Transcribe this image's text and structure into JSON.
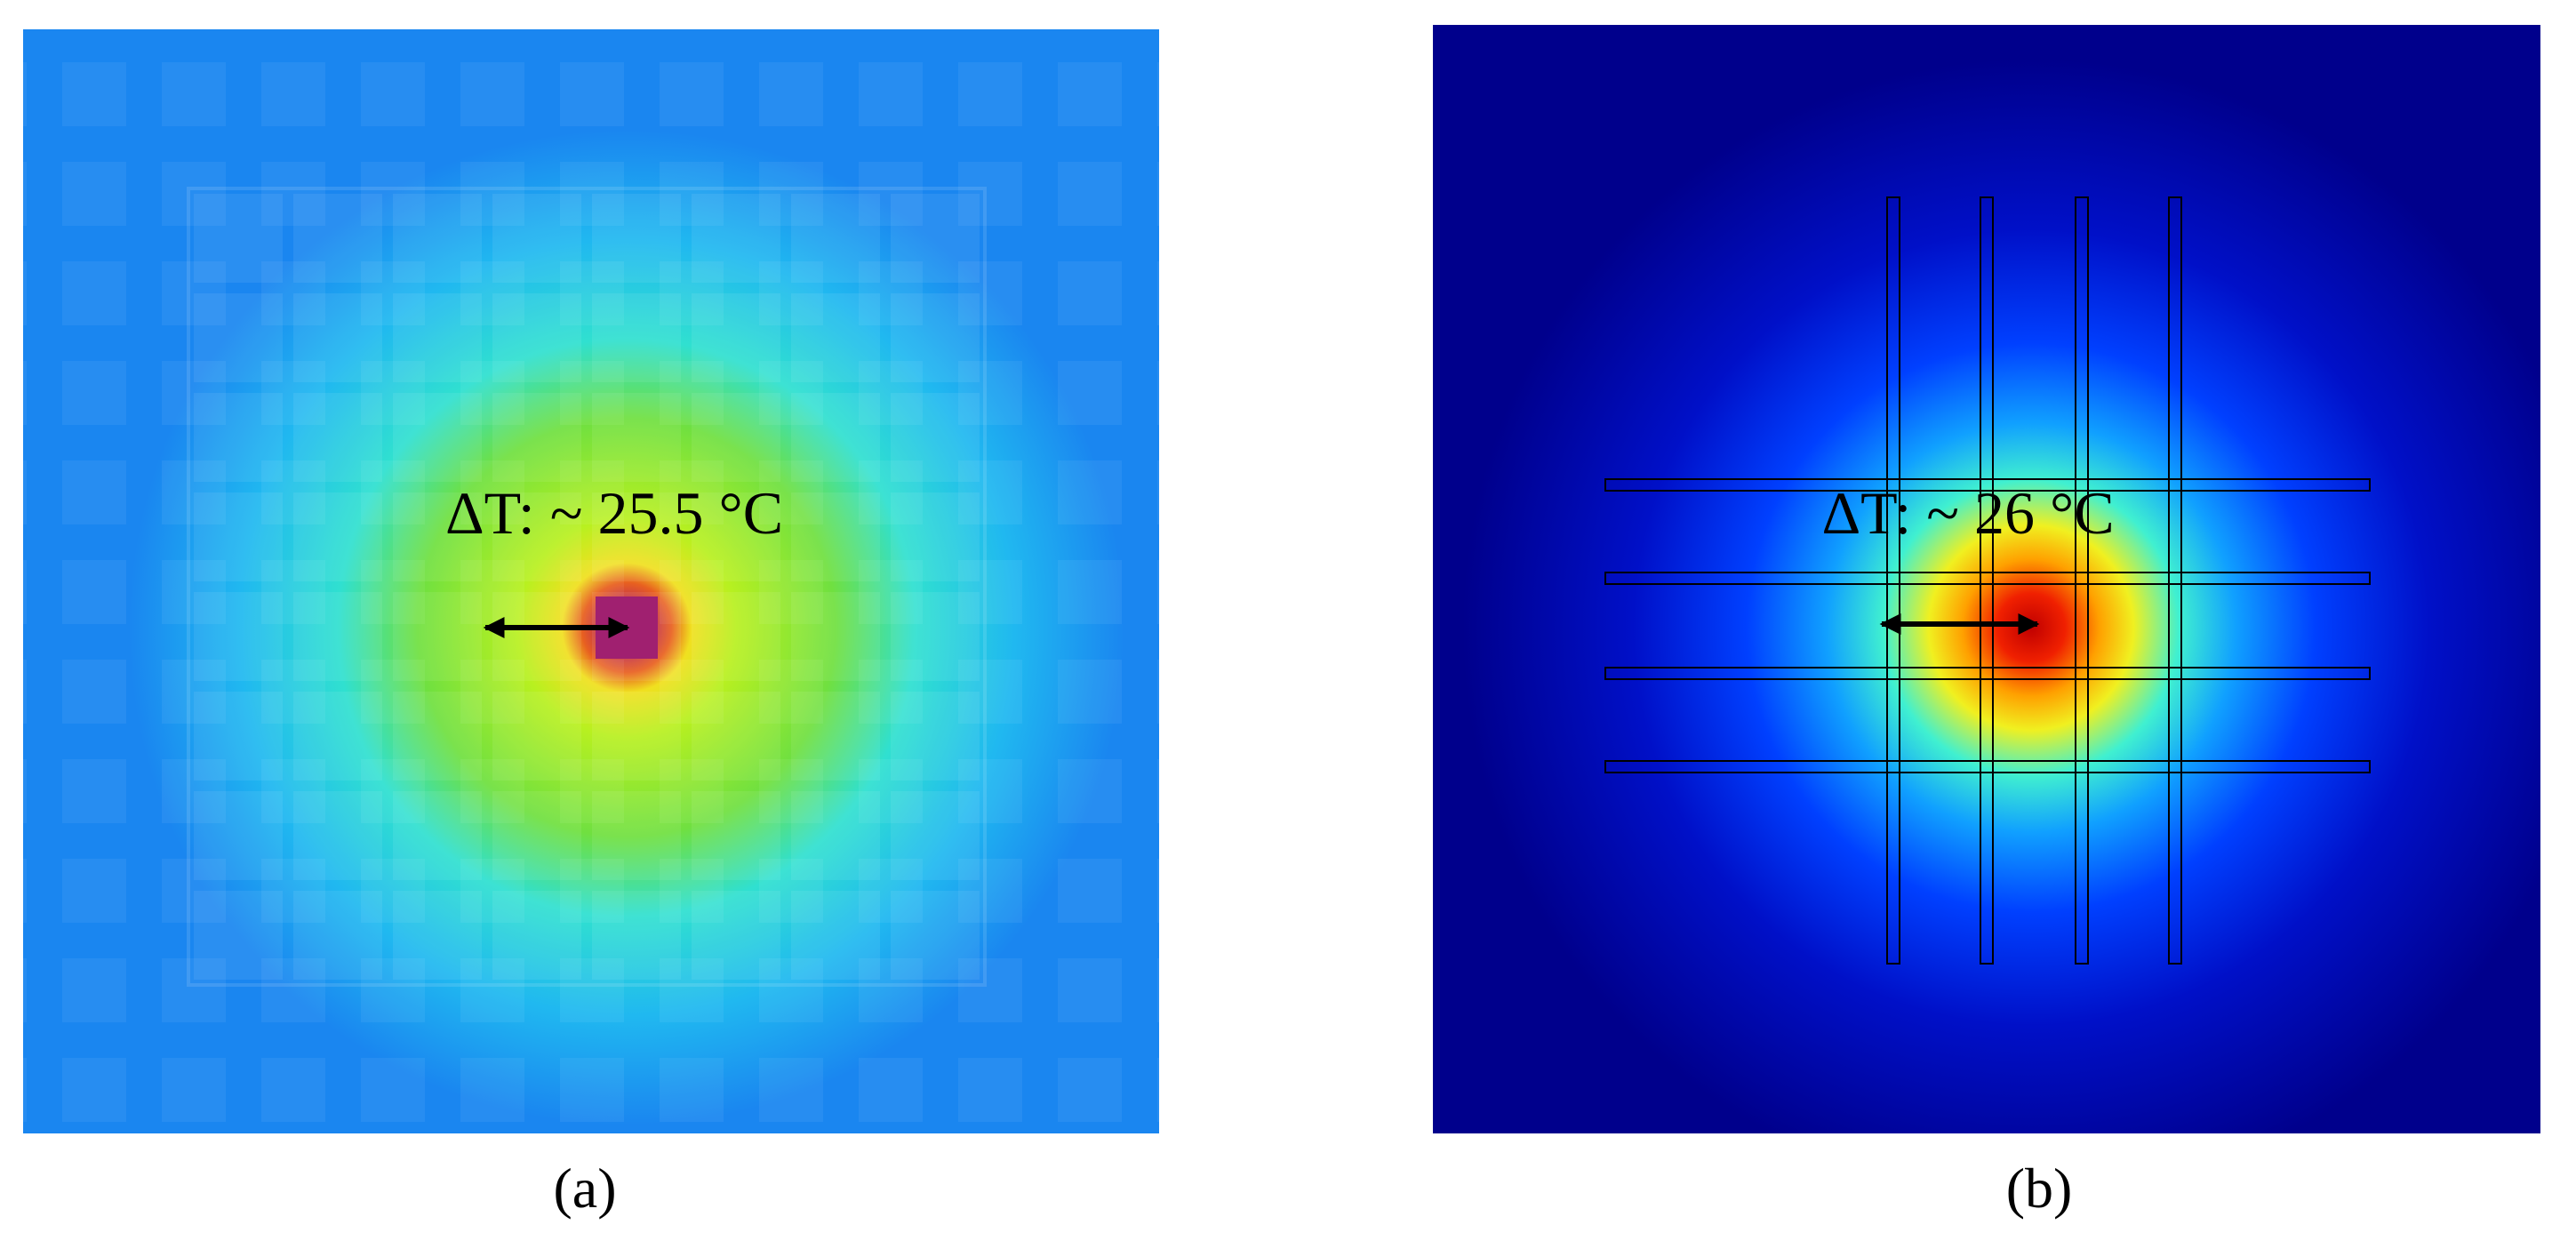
{
  "panels": [
    {
      "annotation": "ΔT: ~ 25.5 °C",
      "caption": "(a)"
    },
    {
      "annotation": "ΔT: ~ 26 °C",
      "caption": "(b)"
    }
  ]
}
